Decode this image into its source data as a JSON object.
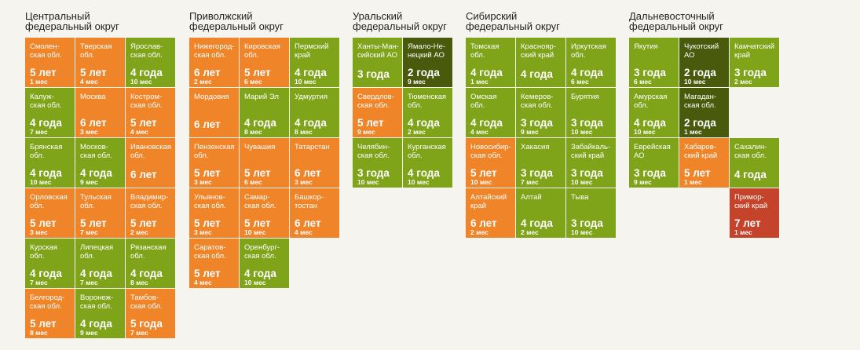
{
  "colors": {
    "background": "#f5f4ee",
    "3": "#7fa319",
    "4": "#7fa319",
    "5": "#f08429",
    "6": "#f08429",
    "7": "#c5432a",
    "dark": "#4a5a0d"
  },
  "chart_data": {
    "type": "table",
    "districts": [
      {
        "title": "Центральный\nфедеральный округ",
        "rows": [
          [
            {
              "name": "Смолен-\nская обл.",
              "years": "5 лет",
              "months": "1 мес",
              "group": "5"
            },
            {
              "name": "Тверская\nобл.",
              "years": "5 лет",
              "months": "4 мес",
              "group": "5"
            },
            {
              "name": "Ярослав-\nская обл.",
              "years": "4 года",
              "months": "10 мес",
              "group": "4"
            }
          ],
          [
            {
              "name": "Калуж-\nская обл.",
              "years": "4 года",
              "months": "7 мес",
              "group": "4"
            },
            {
              "name": "Москва",
              "years": "6 лет",
              "months": "3 мес",
              "group": "6"
            },
            {
              "name": "Костром-\nская обл.",
              "years": "5 лет",
              "months": "4 мес",
              "group": "5"
            }
          ],
          [
            {
              "name": "Брянская\nобл.",
              "years": "4 года",
              "months": "10 мес",
              "group": "4"
            },
            {
              "name": "Москов-\nская обл.",
              "years": "4 года",
              "months": "9 мес",
              "group": "4"
            },
            {
              "name": "Ивановская\nобл.",
              "years": "6 лет",
              "months": "",
              "group": "6"
            }
          ],
          [
            {
              "name": "Орловская\nобл.",
              "years": "5 лет",
              "months": "3 мес",
              "group": "5"
            },
            {
              "name": "Тульская\nобл.",
              "years": "5 лет",
              "months": "7 мес",
              "group": "5"
            },
            {
              "name": "Владимир-\nская обл.",
              "years": "5 лет",
              "months": "2 мес",
              "group": "5"
            }
          ],
          [
            {
              "name": "Курская\nобл.",
              "years": "4 года",
              "months": "7 мес",
              "group": "4"
            },
            {
              "name": "Липецкая\nобл.",
              "years": "4 года",
              "months": "7 мес",
              "group": "4"
            },
            {
              "name": "Рязанская\nобл.",
              "years": "4 года",
              "months": "8 мес",
              "group": "4"
            }
          ],
          [
            {
              "name": "Белгород-\nская обл.",
              "years": "5 лет",
              "months": "8 мес",
              "group": "5"
            },
            {
              "name": "Воронеж-\nская обл.",
              "years": "4 года",
              "months": "9 мес",
              "group": "4"
            },
            {
              "name": "Тамбов-\nская обл.",
              "years": "5 года",
              "months": "7 мес",
              "group": "5"
            }
          ]
        ]
      },
      {
        "title": "Приволжский\nфедеральный округ",
        "rows": [
          [
            {
              "name": "Нижегород-\nская обл.",
              "years": "6 лет",
              "months": "2 мес",
              "group": "6"
            },
            {
              "name": "Кировская\nобл.",
              "years": "5 лет",
              "months": "6 мес",
              "group": "5"
            },
            {
              "name": "Пермский\nкрай",
              "years": "4 года",
              "months": "10 мес",
              "group": "4"
            }
          ],
          [
            {
              "name": "Мордовия",
              "years": "6 лет",
              "months": "",
              "group": "6"
            },
            {
              "name": "Марий Эл",
              "years": "4 года",
              "months": "8 мес",
              "group": "4"
            },
            {
              "name": "Удмуртия",
              "years": "4 года",
              "months": "8 мес",
              "group": "4"
            }
          ],
          [
            {
              "name": "Пензенская\nобл.",
              "years": "5 лет",
              "months": "3 мес",
              "group": "5"
            },
            {
              "name": "Чувашия",
              "years": "5 лет",
              "months": "6 мес",
              "group": "5"
            },
            {
              "name": "Татарстан",
              "years": "6 лет",
              "months": "3 мес",
              "group": "6"
            }
          ],
          [
            {
              "name": "Ульянов-\nская обл.",
              "years": "5 лет",
              "months": "3 мес",
              "group": "5"
            },
            {
              "name": "Самар-\nская обл.",
              "years": "5 лет",
              "months": "10 мес",
              "group": "5"
            },
            {
              "name": "Башкор-\nтостан",
              "years": "6 лет",
              "months": "4 мес",
              "group": "6"
            }
          ],
          [
            {
              "name": "Саратов-\nская обл.",
              "years": "5 лет",
              "months": "4 мес",
              "group": "5"
            },
            {
              "name": "Оренбург-\nская обл.",
              "years": "4 года",
              "months": "10 мес",
              "group": "4"
            }
          ]
        ]
      },
      {
        "title": "Уральский\nфедеральный округ",
        "rows": [
          [
            {
              "name": "Ханты-Ман-\nсийский АО",
              "years": "3 года",
              "months": "",
              "group": "3"
            },
            {
              "name": "Ямало-Не-\nнецкий АО",
              "years": "2 года",
              "months": "9 мес",
              "group": "dark"
            }
          ],
          [
            {
              "name": "Свердлов-\nская обл.",
              "years": "5 лет",
              "months": "9 мес",
              "group": "5"
            },
            {
              "name": "Тюменская\nобл.",
              "years": "4 года",
              "months": "2 мес",
              "group": "4"
            }
          ],
          [
            {
              "name": "Челябин-\nская обл.",
              "years": "3 года",
              "months": "10 мес",
              "group": "3"
            },
            {
              "name": "Курганская\nобл.",
              "years": "4 года",
              "months": "10 мес",
              "group": "4"
            }
          ]
        ]
      },
      {
        "title": "Сибирский\nфедеральный округ",
        "rows": [
          [
            {
              "name": "Томская\nобл.",
              "years": "4 года",
              "months": "1 мес",
              "group": "4"
            },
            {
              "name": "Краснояр-\nский край",
              "years": "4 года",
              "months": "",
              "group": "4"
            },
            {
              "name": "Иркутская\nобл.",
              "years": "4 года",
              "months": "6 мес",
              "group": "4"
            }
          ],
          [
            {
              "name": "Омская\nобл.",
              "years": "4 года",
              "months": "4 мес",
              "group": "4"
            },
            {
              "name": "Кемеров-\nская обл.",
              "years": "3 года",
              "months": "9 мес",
              "group": "3"
            },
            {
              "name": "Бурятия",
              "years": "3 года",
              "months": "10 мес",
              "group": "3"
            }
          ],
          [
            {
              "name": "Новосибир-\nская обл.",
              "years": "5 лет",
              "months": "10 мес",
              "group": "5"
            },
            {
              "name": "Хакасия",
              "years": "3 года",
              "months": "7 мес",
              "group": "3"
            },
            {
              "name": "Забайкаль-\nский край",
              "years": "3 года",
              "months": "10 мес",
              "group": "3"
            }
          ],
          [
            {
              "name": "Алтайский\nкрай",
              "years": "6 лет",
              "months": "2 мес",
              "group": "6"
            },
            {
              "name": "Алтай",
              "years": "4 года",
              "months": "2 мес",
              "group": "4"
            },
            {
              "name": "Тыва",
              "years": "3 года",
              "months": "10 мес",
              "group": "3"
            }
          ]
        ]
      },
      {
        "title": "Дальневосточный\nфедеральный округ",
        "rows": [
          [
            {
              "name": "Якутия",
              "years": "3 года",
              "months": "6 мес",
              "group": "3"
            },
            {
              "name": "Чукотский\nАО",
              "years": "2 года",
              "months": "10 мес",
              "group": "dark"
            },
            {
              "name": "Камчатский\nкрай",
              "years": "3 года",
              "months": "2 мес",
              "group": "3"
            }
          ],
          [
            {
              "name": "Амурская\nобл.",
              "years": "4 года",
              "months": "10 мес",
              "group": "4"
            },
            {
              "name": "Магадан-\nская обл.",
              "years": "2 года",
              "months": "1 мес",
              "group": "dark"
            },
            null
          ],
          [
            {
              "name": "Еврейская\nАО",
              "years": "3 года",
              "months": "9 мес",
              "group": "3"
            },
            {
              "name": "Хабаров-\nский край",
              "years": "5 лет",
              "months": "1 мес",
              "group": "5"
            },
            {
              "name": "Сахалин-\nская обл.",
              "years": "4 года",
              "months": "",
              "group": "4"
            }
          ],
          [
            null,
            null,
            {
              "name": "Примор-\nский край",
              "years": "7 лет",
              "months": "1 мес",
              "group": "7"
            }
          ]
        ]
      }
    ]
  }
}
